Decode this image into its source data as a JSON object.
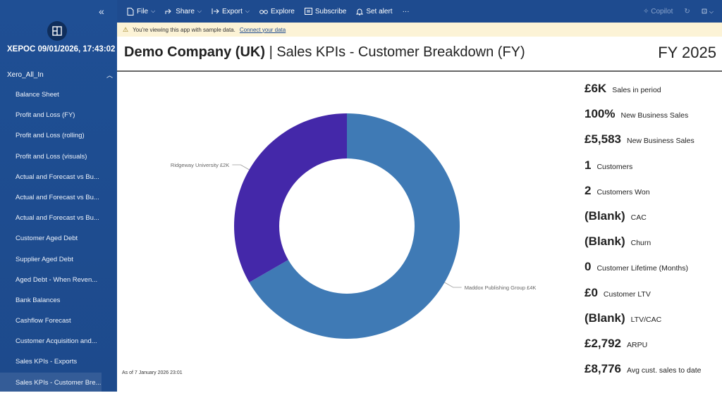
{
  "sidebar": {
    "app_title": "XEPOC 09/01/2026, 17:43:02",
    "workspace": "Xero_All_In",
    "items": [
      {
        "label": "Balance Sheet"
      },
      {
        "label": "Profit and Loss (FY)"
      },
      {
        "label": "Profit and Loss (rolling)"
      },
      {
        "label": "Profit and Loss (visuals)"
      },
      {
        "label": "Actual and Forecast vs Bu..."
      },
      {
        "label": "Actual and Forecast vs Bu..."
      },
      {
        "label": "Actual and Forecast vs Bu..."
      },
      {
        "label": "Customer Aged Debt"
      },
      {
        "label": "Supplier Aged Debt"
      },
      {
        "label": "Aged Debt - When Reven..."
      },
      {
        "label": "Bank Balances"
      },
      {
        "label": "Cashflow Forecast"
      },
      {
        "label": "Customer Acquisition and..."
      },
      {
        "label": "Sales KPIs - Exports"
      },
      {
        "label": "Sales KPIs - Customer Bre..."
      }
    ]
  },
  "toolbar": {
    "file": "File",
    "share": "Share",
    "export": "Export",
    "explore": "Explore",
    "subscribe": "Subscribe",
    "set_alert": "Set alert",
    "more": "···",
    "copilot": "Copilot"
  },
  "banner": {
    "text": "You're viewing this app with sample data.",
    "link": "Connect your data"
  },
  "header": {
    "company": "Demo Company (UK)",
    "report": " | Sales KPIs - Customer Breakdown (FY)",
    "period": "FY 2025"
  },
  "chart_data": {
    "type": "pie",
    "donut": true,
    "categories": [
      "Maddox Publishing Group",
      "Ridgeway University"
    ],
    "values": [
      4,
      2
    ],
    "labels": [
      "Maddox Publishing Group £4K",
      "Ridgeway University £2K"
    ],
    "colors": [
      "#3f7ab5",
      "#4428a9"
    ]
  },
  "as_of": "As of 7 January 2026 23:01",
  "kpis": [
    {
      "value": "£6K",
      "label": "Sales in period"
    },
    {
      "value": "100%",
      "label": "New Business Sales"
    },
    {
      "value": "£5,583",
      "label": "New Business Sales"
    },
    {
      "value": "1",
      "label": "Customers"
    },
    {
      "value": "2",
      "label": "Customers Won"
    },
    {
      "value": "(Blank)",
      "label": "CAC"
    },
    {
      "value": "(Blank)",
      "label": "Churn"
    },
    {
      "value": "0",
      "label": "Customer Lifetime (Months)"
    },
    {
      "value": "£0",
      "label": "Customer LTV"
    },
    {
      "value": "(Blank)",
      "label": "LTV/CAC"
    },
    {
      "value": "£2,792",
      "label": "ARPU"
    },
    {
      "value": "£8,776",
      "label": "Avg cust. sales to date"
    }
  ]
}
